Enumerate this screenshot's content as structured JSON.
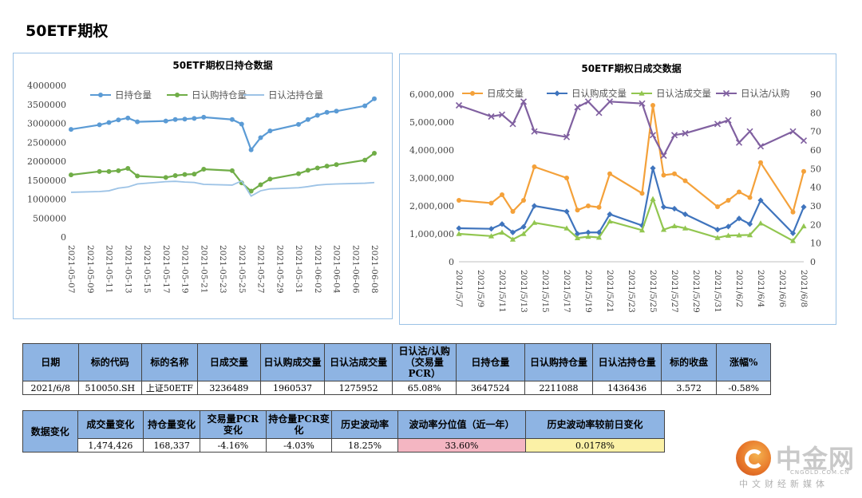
{
  "page": {
    "title": "50ETF期权"
  },
  "chart_data": [
    {
      "type": "line",
      "title": "50ETF期权日持仓数据",
      "x": [
        "2021-05-07",
        "2021-05-10",
        "2021-05-11",
        "2021-05-12",
        "2021-05-13",
        "2021-05-14",
        "2021-05-17",
        "2021-05-18",
        "2021-05-19",
        "2021-05-20",
        "2021-05-21",
        "2021-05-24",
        "2021-05-25",
        "2021-05-26",
        "2021-05-27",
        "2021-05-28",
        "2021-05-31",
        "2021-06-01",
        "2021-06-02",
        "2021-06-03",
        "2021-06-04",
        "2021-06-07",
        "2021-06-08"
      ],
      "x_tick_labels": [
        "2021-05-07",
        "2021-05-09",
        "2021-05-11",
        "2021-05-13",
        "2021-05-15",
        "2021-05-17",
        "2021-05-19",
        "2021-05-21",
        "2021-05-23",
        "2021-05-25",
        "2021-05-27",
        "2021-05-29",
        "2021-05-31",
        "2021-06-02",
        "2021-06-04",
        "2021-06-06",
        "2021-06-08"
      ],
      "y_ticks": [
        "4000000",
        "3500000",
        "3000000",
        "2500000",
        "2000000",
        "1500000",
        "1000000",
        "500000",
        "0"
      ],
      "ylim": [
        0,
        4000000
      ],
      "legend_position": "top",
      "series": [
        {
          "name": "日持仓量",
          "color": "#5b9bd5",
          "marker": "dot",
          "values": [
            2840000,
            2960000,
            3020000,
            3090000,
            3140000,
            3040000,
            3060000,
            3100000,
            3110000,
            3130000,
            3160000,
            3100000,
            2980000,
            2300000,
            2620000,
            2800000,
            2970000,
            3100000,
            3210000,
            3290000,
            3320000,
            3460000,
            3647524
          ]
        },
        {
          "name": "日认购持仓量",
          "color": "#70ad47",
          "marker": "dot",
          "values": [
            1640000,
            1730000,
            1730000,
            1750000,
            1810000,
            1610000,
            1570000,
            1620000,
            1650000,
            1660000,
            1790000,
            1750000,
            1430000,
            1210000,
            1380000,
            1530000,
            1670000,
            1760000,
            1820000,
            1870000,
            1910000,
            2030000,
            2211088
          ]
        },
        {
          "name": "日认沽持仓量",
          "color": "#9dc3e6",
          "marker": "none",
          "values": [
            1180000,
            1200000,
            1220000,
            1290000,
            1320000,
            1400000,
            1460000,
            1470000,
            1450000,
            1440000,
            1390000,
            1370000,
            1480000,
            1080000,
            1220000,
            1270000,
            1300000,
            1330000,
            1370000,
            1390000,
            1400000,
            1420000,
            1436436
          ]
        }
      ]
    },
    {
      "type": "line",
      "title": "50ETF期权日成交数据",
      "x": [
        "2021/5/7",
        "2021/5/10",
        "2021/5/11",
        "2021/5/12",
        "2021/5/13",
        "2021/5/14",
        "2021/5/17",
        "2021/5/18",
        "2021/5/19",
        "2021/5/20",
        "2021/5/21",
        "2021/5/24",
        "2021/5/25",
        "2021/5/26",
        "2021/5/27",
        "2021/5/28",
        "2021/5/31",
        "2021/6/1",
        "2021/6/2",
        "2021/6/3",
        "2021/6/4",
        "2021/6/7",
        "2021/6/8"
      ],
      "x_tick_labels": [
        "2021/5/7",
        "2021/5/9",
        "2021/5/11",
        "2021/5/13",
        "2021/5/15",
        "2021/5/17",
        "2021/5/19",
        "2021/5/21",
        "2021/5/23",
        "2021/5/25",
        "2021/5/27",
        "2021/5/29",
        "2021/5/31",
        "2021/6/2",
        "2021/6/4",
        "2021/6/6",
        "2021/6/8"
      ],
      "y_left_ticks": [
        "6,000,000",
        "5,000,000",
        "4,000,000",
        "3,000,000",
        "2,000,000",
        "1,000,000",
        "0"
      ],
      "ylim_left": [
        0,
        6000000
      ],
      "y_right_ticks": [
        "90",
        "80",
        "70",
        "60",
        "50",
        "40",
        "30",
        "20",
        "10",
        "0"
      ],
      "ylim_right": [
        0,
        90
      ],
      "legend_position": "top",
      "series": [
        {
          "name": "日成交量",
          "color": "#f4a13a",
          "marker": "dot",
          "axis": "left",
          "values": [
            2200000,
            2100000,
            2400000,
            1800000,
            2200000,
            3400000,
            3000000,
            1850000,
            2000000,
            1950000,
            3150000,
            2450000,
            5600000,
            3100000,
            3150000,
            2900000,
            1970000,
            2200000,
            2500000,
            2300000,
            3550000,
            1780000,
            3236489
          ]
        },
        {
          "name": "日认购成交量",
          "color": "#3f74bd",
          "marker": "diamond",
          "axis": "left",
          "values": [
            1200000,
            1180000,
            1350000,
            1050000,
            1250000,
            2000000,
            1800000,
            1000000,
            1050000,
            1050000,
            1700000,
            1300000,
            3350000,
            1960000,
            1900000,
            1700000,
            1150000,
            1260000,
            1550000,
            1350000,
            2200000,
            1020000,
            1960537
          ]
        },
        {
          "name": "日认沽成交量",
          "color": "#92c650",
          "marker": "triangle",
          "axis": "left",
          "values": [
            1000000,
            920000,
            1050000,
            800000,
            1000000,
            1400000,
            1200000,
            850000,
            900000,
            870000,
            1450000,
            1130000,
            2250000,
            1150000,
            1280000,
            1200000,
            860000,
            940000,
            950000,
            960000,
            1380000,
            750000,
            1275952
          ]
        },
        {
          "name": "日认沽/认购",
          "color": "#8060a0",
          "marker": "x",
          "axis": "right",
          "values": [
            84,
            78,
            79,
            74,
            86,
            70,
            67,
            83,
            86,
            80,
            86,
            85,
            68,
            57,
            68,
            69,
            74,
            76,
            64,
            70,
            62,
            70,
            65.08
          ]
        }
      ]
    }
  ],
  "table1": {
    "headers": [
      "日期",
      "标的代码",
      "标的名称",
      "日成交量",
      "日认购成交量",
      "日认沽成交量",
      "日认沽/认购\n（交易量\nPCR）",
      "日持仓量",
      "日认购持仓量",
      "日认沽持仓量",
      "标的收盘",
      "涨幅%"
    ],
    "values": [
      "2021/6/8",
      "510050.SH",
      "上证50ETF",
      "3236489",
      "1960537",
      "1275952",
      "65.08%",
      "3647524",
      "2211088",
      "1436436",
      "3.572",
      "-0.58%"
    ]
  },
  "table2": {
    "row_header": "数据变化",
    "headers": [
      "成交量变化",
      "持仓量变化",
      "交易量PCR\n变化",
      "持仓量PCR变\n化",
      "历史波动率",
      "波动率分位值（近一年）",
      "历史波动率较前日变化"
    ],
    "values": [
      "1,474,426",
      "168,337",
      "-4.16%",
      "-4.03%",
      "18.25%",
      "33.60%",
      "0.0178%"
    ],
    "highlight_colors": {
      "percentile": "#f4b6c2",
      "change": "#fbf1a6"
    }
  },
  "watermark": {
    "name": "中金网",
    "url": "CNGOLD.COM.CN",
    "tagline": "中文财经新媒体"
  }
}
